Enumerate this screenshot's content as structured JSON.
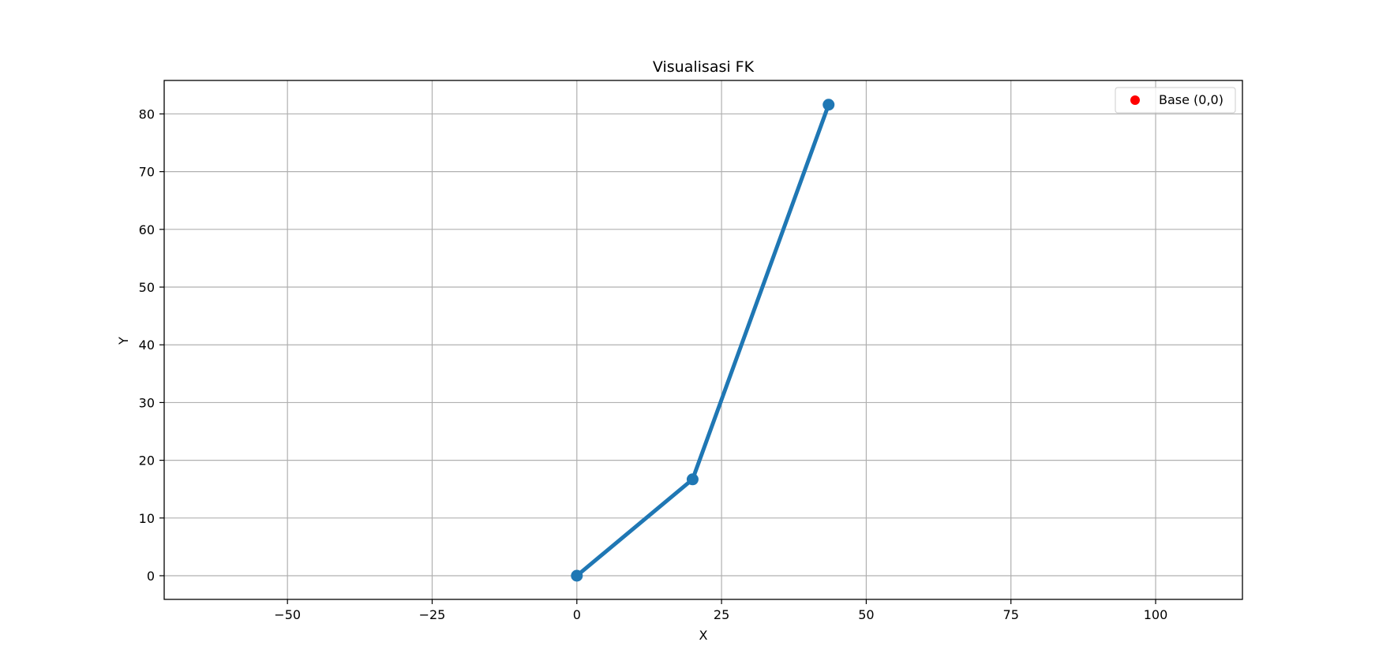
{
  "chart_data": {
    "type": "line",
    "title": "Visualisasi FK",
    "xlabel": "X",
    "ylabel": "Y",
    "xlim": [
      -71.3,
      115.0
    ],
    "ylim": [
      -4.1,
      85.8
    ],
    "xticks": [
      -50,
      -25,
      0,
      25,
      50,
      75,
      100
    ],
    "xtick_labels": [
      "−50",
      "−25",
      "0",
      "25",
      "50",
      "75",
      "100"
    ],
    "yticks": [
      0,
      10,
      20,
      30,
      40,
      50,
      60,
      70,
      80
    ],
    "ytick_labels": [
      "0",
      "10",
      "20",
      "30",
      "40",
      "50",
      "60",
      "70",
      "80"
    ],
    "grid": true,
    "legend_position": "top-right",
    "series": [
      {
        "type": "line",
        "color": "#1f77b4",
        "marker": "circle",
        "x": [
          0,
          20.0,
          43.5
        ],
        "y": [
          0,
          16.7,
          81.6
        ]
      },
      {
        "type": "scatter",
        "name": "Base (0,0)",
        "color": "#ff0000",
        "marker": "circle",
        "x": [
          0
        ],
        "y": [
          0
        ]
      }
    ]
  }
}
